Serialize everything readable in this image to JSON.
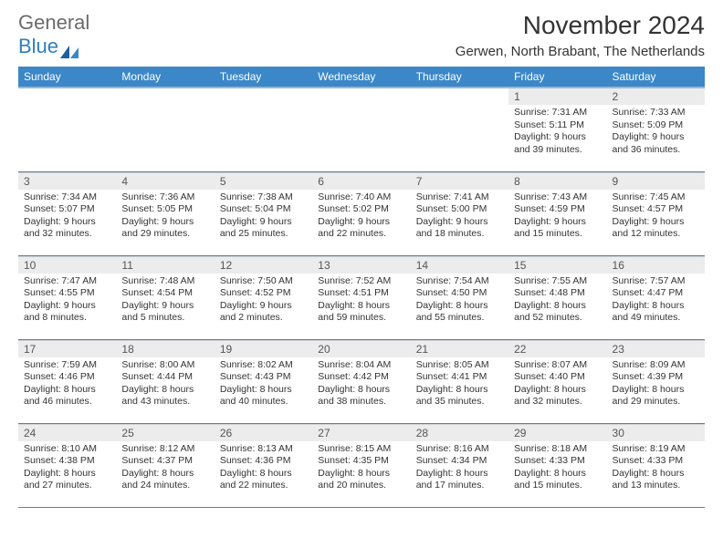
{
  "brand": {
    "text1": "General",
    "text2": "Blue"
  },
  "title": "November 2024",
  "subtitle": "Gerwen, North Brabant, The Netherlands",
  "colors": {
    "header_bg": "#3b87c8",
    "header_text": "#ffffff",
    "daynum_bg": "#ececec",
    "row_border": "#5a7fa3",
    "brand_gray": "#6b6b6b",
    "brand_blue": "#2f7fbf"
  },
  "weekdays": [
    "Sunday",
    "Monday",
    "Tuesday",
    "Wednesday",
    "Thursday",
    "Friday",
    "Saturday"
  ],
  "blanks_before": 5,
  "days": [
    {
      "n": "1",
      "sr": "Sunrise: 7:31 AM",
      "ss": "Sunset: 5:11 PM",
      "dl": "Daylight: 9 hours and 39 minutes."
    },
    {
      "n": "2",
      "sr": "Sunrise: 7:33 AM",
      "ss": "Sunset: 5:09 PM",
      "dl": "Daylight: 9 hours and 36 minutes."
    },
    {
      "n": "3",
      "sr": "Sunrise: 7:34 AM",
      "ss": "Sunset: 5:07 PM",
      "dl": "Daylight: 9 hours and 32 minutes."
    },
    {
      "n": "4",
      "sr": "Sunrise: 7:36 AM",
      "ss": "Sunset: 5:05 PM",
      "dl": "Daylight: 9 hours and 29 minutes."
    },
    {
      "n": "5",
      "sr": "Sunrise: 7:38 AM",
      "ss": "Sunset: 5:04 PM",
      "dl": "Daylight: 9 hours and 25 minutes."
    },
    {
      "n": "6",
      "sr": "Sunrise: 7:40 AM",
      "ss": "Sunset: 5:02 PM",
      "dl": "Daylight: 9 hours and 22 minutes."
    },
    {
      "n": "7",
      "sr": "Sunrise: 7:41 AM",
      "ss": "Sunset: 5:00 PM",
      "dl": "Daylight: 9 hours and 18 minutes."
    },
    {
      "n": "8",
      "sr": "Sunrise: 7:43 AM",
      "ss": "Sunset: 4:59 PM",
      "dl": "Daylight: 9 hours and 15 minutes."
    },
    {
      "n": "9",
      "sr": "Sunrise: 7:45 AM",
      "ss": "Sunset: 4:57 PM",
      "dl": "Daylight: 9 hours and 12 minutes."
    },
    {
      "n": "10",
      "sr": "Sunrise: 7:47 AM",
      "ss": "Sunset: 4:55 PM",
      "dl": "Daylight: 9 hours and 8 minutes."
    },
    {
      "n": "11",
      "sr": "Sunrise: 7:48 AM",
      "ss": "Sunset: 4:54 PM",
      "dl": "Daylight: 9 hours and 5 minutes."
    },
    {
      "n": "12",
      "sr": "Sunrise: 7:50 AM",
      "ss": "Sunset: 4:52 PM",
      "dl": "Daylight: 9 hours and 2 minutes."
    },
    {
      "n": "13",
      "sr": "Sunrise: 7:52 AM",
      "ss": "Sunset: 4:51 PM",
      "dl": "Daylight: 8 hours and 59 minutes."
    },
    {
      "n": "14",
      "sr": "Sunrise: 7:54 AM",
      "ss": "Sunset: 4:50 PM",
      "dl": "Daylight: 8 hours and 55 minutes."
    },
    {
      "n": "15",
      "sr": "Sunrise: 7:55 AM",
      "ss": "Sunset: 4:48 PM",
      "dl": "Daylight: 8 hours and 52 minutes."
    },
    {
      "n": "16",
      "sr": "Sunrise: 7:57 AM",
      "ss": "Sunset: 4:47 PM",
      "dl": "Daylight: 8 hours and 49 minutes."
    },
    {
      "n": "17",
      "sr": "Sunrise: 7:59 AM",
      "ss": "Sunset: 4:46 PM",
      "dl": "Daylight: 8 hours and 46 minutes."
    },
    {
      "n": "18",
      "sr": "Sunrise: 8:00 AM",
      "ss": "Sunset: 4:44 PM",
      "dl": "Daylight: 8 hours and 43 minutes."
    },
    {
      "n": "19",
      "sr": "Sunrise: 8:02 AM",
      "ss": "Sunset: 4:43 PM",
      "dl": "Daylight: 8 hours and 40 minutes."
    },
    {
      "n": "20",
      "sr": "Sunrise: 8:04 AM",
      "ss": "Sunset: 4:42 PM",
      "dl": "Daylight: 8 hours and 38 minutes."
    },
    {
      "n": "21",
      "sr": "Sunrise: 8:05 AM",
      "ss": "Sunset: 4:41 PM",
      "dl": "Daylight: 8 hours and 35 minutes."
    },
    {
      "n": "22",
      "sr": "Sunrise: 8:07 AM",
      "ss": "Sunset: 4:40 PM",
      "dl": "Daylight: 8 hours and 32 minutes."
    },
    {
      "n": "23",
      "sr": "Sunrise: 8:09 AM",
      "ss": "Sunset: 4:39 PM",
      "dl": "Daylight: 8 hours and 29 minutes."
    },
    {
      "n": "24",
      "sr": "Sunrise: 8:10 AM",
      "ss": "Sunset: 4:38 PM",
      "dl": "Daylight: 8 hours and 27 minutes."
    },
    {
      "n": "25",
      "sr": "Sunrise: 8:12 AM",
      "ss": "Sunset: 4:37 PM",
      "dl": "Daylight: 8 hours and 24 minutes."
    },
    {
      "n": "26",
      "sr": "Sunrise: 8:13 AM",
      "ss": "Sunset: 4:36 PM",
      "dl": "Daylight: 8 hours and 22 minutes."
    },
    {
      "n": "27",
      "sr": "Sunrise: 8:15 AM",
      "ss": "Sunset: 4:35 PM",
      "dl": "Daylight: 8 hours and 20 minutes."
    },
    {
      "n": "28",
      "sr": "Sunrise: 8:16 AM",
      "ss": "Sunset: 4:34 PM",
      "dl": "Daylight: 8 hours and 17 minutes."
    },
    {
      "n": "29",
      "sr": "Sunrise: 8:18 AM",
      "ss": "Sunset: 4:33 PM",
      "dl": "Daylight: 8 hours and 15 minutes."
    },
    {
      "n": "30",
      "sr": "Sunrise: 8:19 AM",
      "ss": "Sunset: 4:33 PM",
      "dl": "Daylight: 8 hours and 13 minutes."
    }
  ]
}
